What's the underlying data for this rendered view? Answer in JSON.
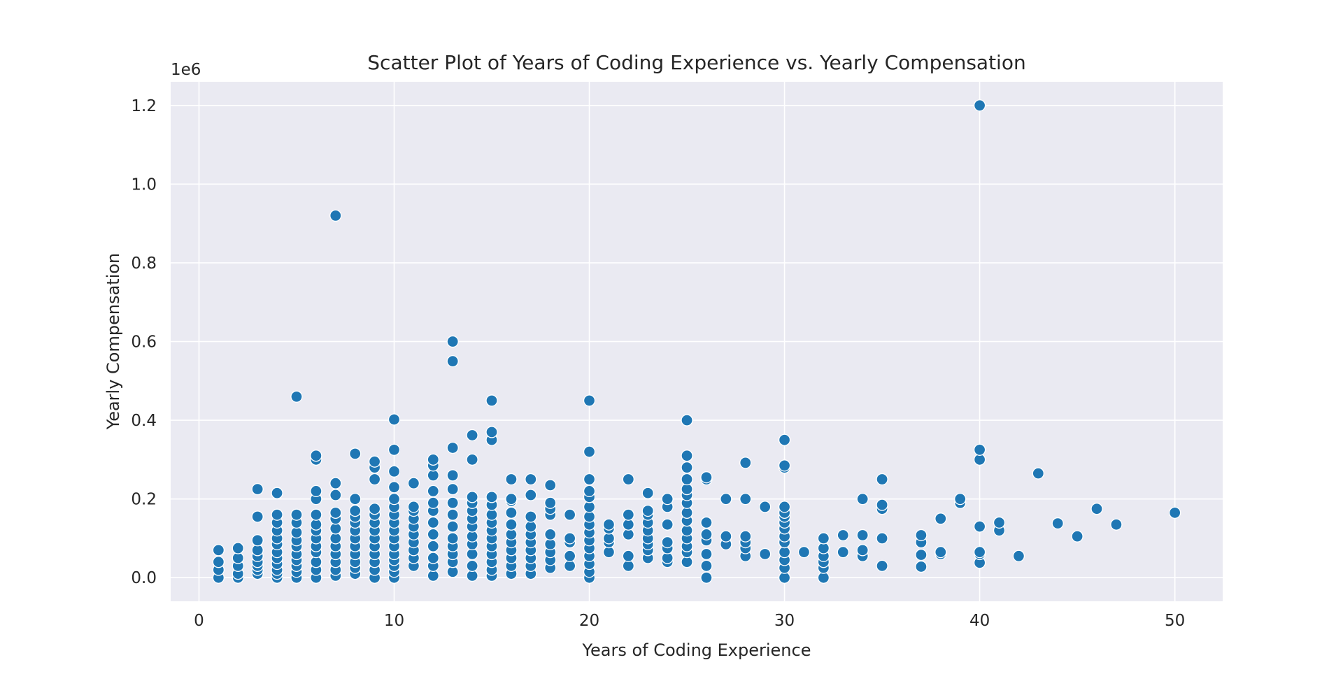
{
  "chart_data": {
    "type": "scatter",
    "title": "Scatter Plot of Years of Coding Experience vs. Yearly Compensation",
    "xlabel": "Years of Coding Experience",
    "ylabel": "Yearly Compensation",
    "y_offset_label": "1e6",
    "xlim": [
      -1.45,
      52.45
    ],
    "ylim": [
      -0.06,
      1.26
    ],
    "x_ticks": [
      0,
      10,
      20,
      30,
      40,
      50
    ],
    "x_tick_labels": [
      "0",
      "10",
      "20",
      "30",
      "40",
      "50"
    ],
    "y_ticks": [
      0.0,
      0.2,
      0.4,
      0.6,
      0.8,
      1.0,
      1.2
    ],
    "y_tick_labels": [
      "0.0",
      "0.2",
      "0.4",
      "0.6",
      "0.8",
      "1.0",
      "1.2"
    ],
    "grid": true,
    "legend": "none",
    "colors": {
      "point": "#1f77b4",
      "point_edge": "#ffffff",
      "plot_bg": "#eaeaf2",
      "grid": "#ffffff"
    },
    "points": [
      [
        1,
        0.0
      ],
      [
        1,
        0.02
      ],
      [
        1,
        0.04
      ],
      [
        1,
        0.07
      ],
      [
        2,
        0.0
      ],
      [
        2,
        0.01
      ],
      [
        2,
        0.03
      ],
      [
        2,
        0.05
      ],
      [
        2,
        0.075
      ],
      [
        3,
        0.01
      ],
      [
        3,
        0.02
      ],
      [
        3,
        0.03
      ],
      [
        3,
        0.04
      ],
      [
        3,
        0.055
      ],
      [
        3,
        0.07
      ],
      [
        3,
        0.095
      ],
      [
        3,
        0.155
      ],
      [
        3,
        0.225
      ],
      [
        4,
        0.0
      ],
      [
        4,
        0.01
      ],
      [
        4,
        0.02
      ],
      [
        4,
        0.035
      ],
      [
        4,
        0.05
      ],
      [
        4,
        0.065
      ],
      [
        4,
        0.085
      ],
      [
        4,
        0.1
      ],
      [
        4,
        0.12
      ],
      [
        4,
        0.14
      ],
      [
        4,
        0.16
      ],
      [
        4,
        0.215
      ],
      [
        5,
        0.0
      ],
      [
        5,
        0.015
      ],
      [
        5,
        0.03
      ],
      [
        5,
        0.045
      ],
      [
        5,
        0.06
      ],
      [
        5,
        0.08
      ],
      [
        5,
        0.095
      ],
      [
        5,
        0.115
      ],
      [
        5,
        0.14
      ],
      [
        5,
        0.16
      ],
      [
        5,
        0.46
      ],
      [
        6,
        0.0
      ],
      [
        6,
        0.02
      ],
      [
        6,
        0.04
      ],
      [
        6,
        0.065
      ],
      [
        6,
        0.08
      ],
      [
        6,
        0.1
      ],
      [
        6,
        0.12
      ],
      [
        6,
        0.135
      ],
      [
        6,
        0.16
      ],
      [
        6,
        0.2
      ],
      [
        6,
        0.22
      ],
      [
        6,
        0.3
      ],
      [
        6,
        0.31
      ],
      [
        7,
        0.005
      ],
      [
        7,
        0.02
      ],
      [
        7,
        0.04
      ],
      [
        7,
        0.06
      ],
      [
        7,
        0.08
      ],
      [
        7,
        0.1
      ],
      [
        7,
        0.125
      ],
      [
        7,
        0.15
      ],
      [
        7,
        0.165
      ],
      [
        7,
        0.21
      ],
      [
        7,
        0.24
      ],
      [
        7,
        0.92
      ],
      [
        8,
        0.01
      ],
      [
        8,
        0.025
      ],
      [
        8,
        0.04
      ],
      [
        8,
        0.06
      ],
      [
        8,
        0.08
      ],
      [
        8,
        0.1
      ],
      [
        8,
        0.12
      ],
      [
        8,
        0.14
      ],
      [
        8,
        0.155
      ],
      [
        8,
        0.17
      ],
      [
        8,
        0.2
      ],
      [
        8,
        0.315
      ],
      [
        9,
        0.0
      ],
      [
        9,
        0.02
      ],
      [
        9,
        0.04
      ],
      [
        9,
        0.06
      ],
      [
        9,
        0.08
      ],
      [
        9,
        0.1
      ],
      [
        9,
        0.12
      ],
      [
        9,
        0.14
      ],
      [
        9,
        0.16
      ],
      [
        9,
        0.175
      ],
      [
        9,
        0.25
      ],
      [
        9,
        0.28
      ],
      [
        9,
        0.295
      ],
      [
        10,
        0.0
      ],
      [
        10,
        0.015
      ],
      [
        10,
        0.03
      ],
      [
        10,
        0.045
      ],
      [
        10,
        0.06
      ],
      [
        10,
        0.08
      ],
      [
        10,
        0.1
      ],
      [
        10,
        0.12
      ],
      [
        10,
        0.14
      ],
      [
        10,
        0.16
      ],
      [
        10,
        0.18
      ],
      [
        10,
        0.2
      ],
      [
        10,
        0.23
      ],
      [
        10,
        0.27
      ],
      [
        10,
        0.325
      ],
      [
        10,
        0.402
      ],
      [
        11,
        0.03
      ],
      [
        11,
        0.05
      ],
      [
        11,
        0.07
      ],
      [
        11,
        0.09
      ],
      [
        11,
        0.11
      ],
      [
        11,
        0.13
      ],
      [
        11,
        0.15
      ],
      [
        11,
        0.17
      ],
      [
        11,
        0.18
      ],
      [
        11,
        0.24
      ],
      [
        12,
        0.005
      ],
      [
        12,
        0.03
      ],
      [
        12,
        0.05
      ],
      [
        12,
        0.08
      ],
      [
        12,
        0.11
      ],
      [
        12,
        0.14
      ],
      [
        12,
        0.17
      ],
      [
        12,
        0.19
      ],
      [
        12,
        0.22
      ],
      [
        12,
        0.26
      ],
      [
        12,
        0.285
      ],
      [
        12,
        0.3
      ],
      [
        13,
        0.015
      ],
      [
        13,
        0.04
      ],
      [
        13,
        0.06
      ],
      [
        13,
        0.08
      ],
      [
        13,
        0.1
      ],
      [
        13,
        0.13
      ],
      [
        13,
        0.16
      ],
      [
        13,
        0.19
      ],
      [
        13,
        0.225
      ],
      [
        13,
        0.26
      ],
      [
        13,
        0.33
      ],
      [
        13,
        0.55
      ],
      [
        13,
        0.6
      ],
      [
        14,
        0.005
      ],
      [
        14,
        0.03
      ],
      [
        14,
        0.06
      ],
      [
        14,
        0.085
      ],
      [
        14,
        0.105
      ],
      [
        14,
        0.13
      ],
      [
        14,
        0.15
      ],
      [
        14,
        0.17
      ],
      [
        14,
        0.19
      ],
      [
        14,
        0.205
      ],
      [
        14,
        0.3
      ],
      [
        14,
        0.362
      ],
      [
        15,
        0.005
      ],
      [
        15,
        0.02
      ],
      [
        15,
        0.04
      ],
      [
        15,
        0.06
      ],
      [
        15,
        0.08
      ],
      [
        15,
        0.1
      ],
      [
        15,
        0.12
      ],
      [
        15,
        0.14
      ],
      [
        15,
        0.16
      ],
      [
        15,
        0.185
      ],
      [
        15,
        0.205
      ],
      [
        15,
        0.35
      ],
      [
        15,
        0.37
      ],
      [
        15,
        0.45
      ],
      [
        16,
        0.01
      ],
      [
        16,
        0.03
      ],
      [
        16,
        0.05
      ],
      [
        16,
        0.07
      ],
      [
        16,
        0.09
      ],
      [
        16,
        0.11
      ],
      [
        16,
        0.135
      ],
      [
        16,
        0.165
      ],
      [
        16,
        0.195
      ],
      [
        16,
        0.2
      ],
      [
        16,
        0.25
      ],
      [
        17,
        0.01
      ],
      [
        17,
        0.03
      ],
      [
        17,
        0.05
      ],
      [
        17,
        0.07
      ],
      [
        17,
        0.09
      ],
      [
        17,
        0.11
      ],
      [
        17,
        0.13
      ],
      [
        17,
        0.155
      ],
      [
        17,
        0.21
      ],
      [
        17,
        0.25
      ],
      [
        18,
        0.025
      ],
      [
        18,
        0.045
      ],
      [
        18,
        0.065
      ],
      [
        18,
        0.085
      ],
      [
        18,
        0.11
      ],
      [
        18,
        0.16
      ],
      [
        18,
        0.175
      ],
      [
        18,
        0.19
      ],
      [
        18,
        0.235
      ],
      [
        19,
        0.03
      ],
      [
        19,
        0.055
      ],
      [
        19,
        0.09
      ],
      [
        19,
        0.1
      ],
      [
        19,
        0.16
      ],
      [
        20,
        0.0
      ],
      [
        20,
        0.015
      ],
      [
        20,
        0.035
      ],
      [
        20,
        0.055
      ],
      [
        20,
        0.075
      ],
      [
        20,
        0.095
      ],
      [
        20,
        0.115
      ],
      [
        20,
        0.135
      ],
      [
        20,
        0.155
      ],
      [
        20,
        0.18
      ],
      [
        20,
        0.205
      ],
      [
        20,
        0.22
      ],
      [
        20,
        0.25
      ],
      [
        20,
        0.32
      ],
      [
        20,
        0.45
      ],
      [
        21,
        0.065
      ],
      [
        21,
        0.09
      ],
      [
        21,
        0.1
      ],
      [
        21,
        0.125
      ],
      [
        21,
        0.135
      ],
      [
        22,
        0.03
      ],
      [
        22,
        0.055
      ],
      [
        22,
        0.11
      ],
      [
        22,
        0.135
      ],
      [
        22,
        0.16
      ],
      [
        22,
        0.25
      ],
      [
        23,
        0.05
      ],
      [
        23,
        0.07
      ],
      [
        23,
        0.085
      ],
      [
        23,
        0.1
      ],
      [
        23,
        0.12
      ],
      [
        23,
        0.14
      ],
      [
        23,
        0.16
      ],
      [
        23,
        0.17
      ],
      [
        23,
        0.215
      ],
      [
        24,
        0.04
      ],
      [
        24,
        0.05
      ],
      [
        24,
        0.075
      ],
      [
        24,
        0.09
      ],
      [
        24,
        0.135
      ],
      [
        24,
        0.18
      ],
      [
        24,
        0.2
      ],
      [
        25,
        0.04
      ],
      [
        25,
        0.065
      ],
      [
        25,
        0.08
      ],
      [
        25,
        0.1
      ],
      [
        25,
        0.12
      ],
      [
        25,
        0.145
      ],
      [
        25,
        0.165
      ],
      [
        25,
        0.19
      ],
      [
        25,
        0.21
      ],
      [
        25,
        0.225
      ],
      [
        25,
        0.25
      ],
      [
        25,
        0.28
      ],
      [
        25,
        0.31
      ],
      [
        25,
        0.4
      ],
      [
        26,
        0.0
      ],
      [
        26,
        0.03
      ],
      [
        26,
        0.06
      ],
      [
        26,
        0.095
      ],
      [
        26,
        0.11
      ],
      [
        26,
        0.14
      ],
      [
        26,
        0.25
      ],
      [
        26,
        0.255
      ],
      [
        27,
        0.085
      ],
      [
        27,
        0.105
      ],
      [
        27,
        0.2
      ],
      [
        28,
        0.055
      ],
      [
        28,
        0.075
      ],
      [
        28,
        0.09
      ],
      [
        28,
        0.105
      ],
      [
        28,
        0.2
      ],
      [
        28,
        0.292
      ],
      [
        29,
        0.06
      ],
      [
        29,
        0.18
      ],
      [
        30,
        0.0
      ],
      [
        30,
        0.025
      ],
      [
        30,
        0.045
      ],
      [
        30,
        0.065
      ],
      [
        30,
        0.09
      ],
      [
        30,
        0.105
      ],
      [
        30,
        0.125
      ],
      [
        30,
        0.14
      ],
      [
        30,
        0.155
      ],
      [
        30,
        0.165
      ],
      [
        30,
        0.18
      ],
      [
        30,
        0.28
      ],
      [
        30,
        0.285
      ],
      [
        30,
        0.35
      ],
      [
        31,
        0.065
      ],
      [
        32,
        0.0
      ],
      [
        32,
        0.025
      ],
      [
        32,
        0.04
      ],
      [
        32,
        0.055
      ],
      [
        32,
        0.075
      ],
      [
        32,
        0.1
      ],
      [
        33,
        0.065
      ],
      [
        33,
        0.108
      ],
      [
        34,
        0.055
      ],
      [
        34,
        0.07
      ],
      [
        34,
        0.108
      ],
      [
        34,
        0.2
      ],
      [
        35,
        0.03
      ],
      [
        35,
        0.1
      ],
      [
        35,
        0.175
      ],
      [
        35,
        0.185
      ],
      [
        35,
        0.25
      ],
      [
        37,
        0.028
      ],
      [
        37,
        0.058
      ],
      [
        37,
        0.09
      ],
      [
        37,
        0.108
      ],
      [
        38,
        0.06
      ],
      [
        38,
        0.065
      ],
      [
        38,
        0.15
      ],
      [
        39,
        0.19
      ],
      [
        39,
        0.2
      ],
      [
        40,
        0.038
      ],
      [
        40,
        0.06
      ],
      [
        40,
        0.065
      ],
      [
        40,
        0.13
      ],
      [
        40,
        0.3
      ],
      [
        40,
        0.325
      ],
      [
        40,
        1.2
      ],
      [
        41,
        0.12
      ],
      [
        41,
        0.14
      ],
      [
        42,
        0.055
      ],
      [
        43,
        0.265
      ],
      [
        44,
        0.138
      ],
      [
        45,
        0.105
      ],
      [
        46,
        0.175
      ],
      [
        47,
        0.135
      ],
      [
        50,
        0.165
      ]
    ]
  }
}
